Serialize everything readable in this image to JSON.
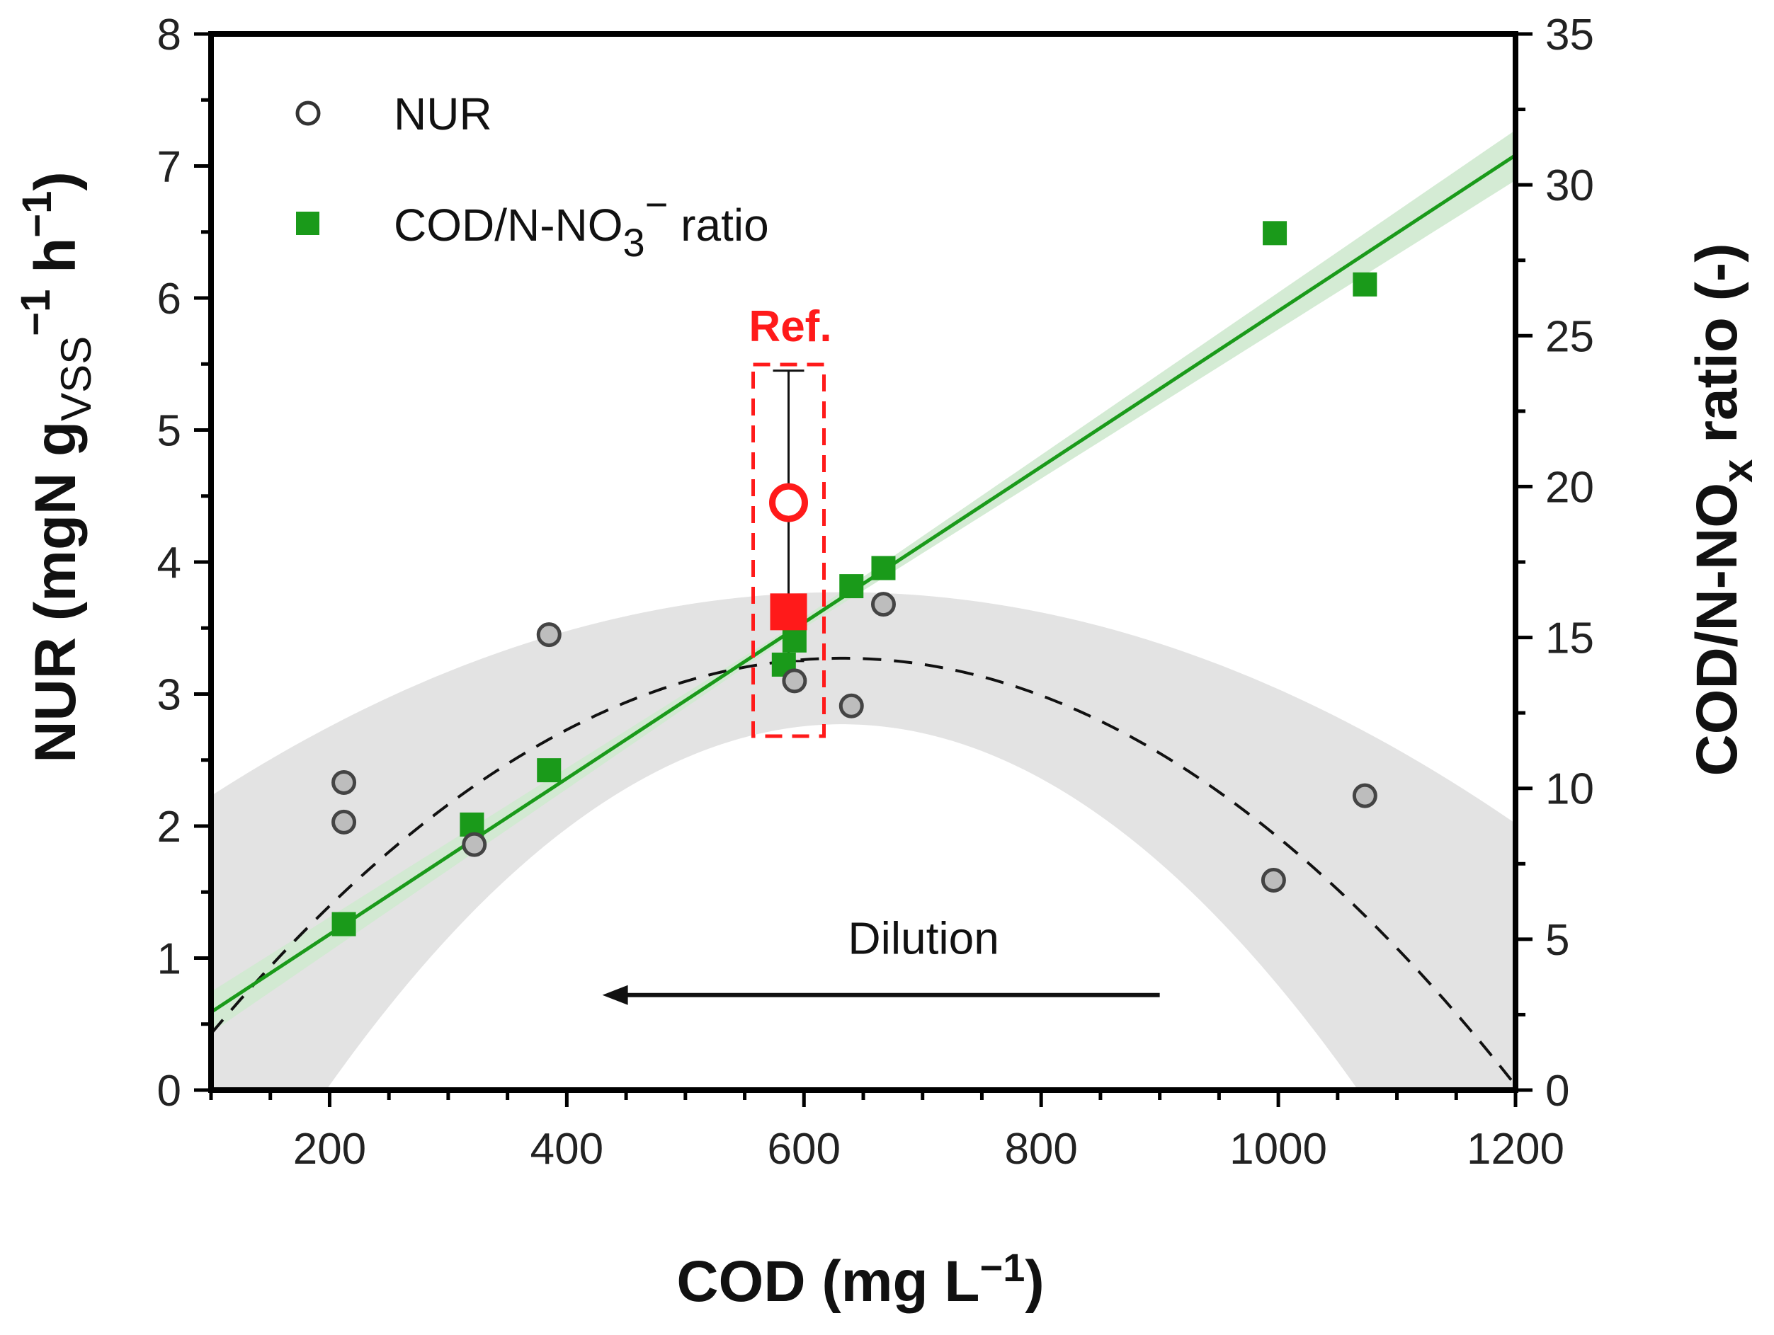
{
  "chart_data": {
    "type": "scatter",
    "x_axis": {
      "label_main": "COD (mg L",
      "label_sup": "−1",
      "label_end": ")",
      "range": [
        100,
        1200
      ],
      "ticks": [
        200,
        400,
        600,
        800,
        1000,
        1200
      ]
    },
    "y_left": {
      "label_main": "NUR (mgN g",
      "label_sub": "VSS",
      "label_sup1": "−1",
      "label_mid": " h",
      "label_sup2": "−1",
      "label_end": ")",
      "range": [
        0,
        8
      ],
      "ticks": [
        0,
        1,
        2,
        3,
        4,
        5,
        6,
        7,
        8
      ]
    },
    "y_right": {
      "label_main": "COD/N-NO",
      "label_sub": "x",
      "label_end": " ratio (-)",
      "range": [
        0,
        35
      ],
      "ticks": [
        0,
        5,
        10,
        15,
        20,
        25,
        30,
        35
      ]
    },
    "series": [
      {
        "name": "NUR",
        "axis": "left",
        "marker": "open-circle",
        "points": [
          {
            "x": 212,
            "y": 2.33
          },
          {
            "x": 212,
            "y": 2.03
          },
          {
            "x": 322,
            "y": 1.86
          },
          {
            "x": 385,
            "y": 3.45
          },
          {
            "x": 592,
            "y": 3.1
          },
          {
            "x": 640,
            "y": 2.91
          },
          {
            "x": 667,
            "y": 3.68
          },
          {
            "x": 996,
            "y": 1.59
          },
          {
            "x": 1073,
            "y": 2.23
          }
        ]
      },
      {
        "name_main": "COD/N-NO",
        "name_sub": "3",
        "name_sup": "−",
        "name_end": " ratio",
        "axis": "right",
        "marker": "filled-square",
        "points": [
          {
            "x": 212,
            "y": 5.5
          },
          {
            "x": 320,
            "y": 8.8
          },
          {
            "x": 385,
            "y": 10.6
          },
          {
            "x": 583,
            "y": 14.1
          },
          {
            "x": 592,
            "y": 14.9
          },
          {
            "x": 640,
            "y": 16.7
          },
          {
            "x": 667,
            "y": 17.3
          },
          {
            "x": 997,
            "y": 28.4
          },
          {
            "x": 1073,
            "y": 26.7
          }
        ]
      }
    ],
    "reference": {
      "label": "Ref.",
      "x": 587,
      "nur": 4.45,
      "nur_error_low": 3.25,
      "nur_error_high": 5.45,
      "ratio": 15.85
    },
    "fits": {
      "nur_quadratic": {
        "a": -1.004e-05,
        "b": 0.012696,
        "c": -0.7424
      },
      "ratio_linear": {
        "slope": 0.02582,
        "intercept": 0.0
      }
    },
    "annotation": {
      "text": "Dilution",
      "arrow_from_x": 900,
      "arrow_to_x": 430,
      "arrow_y": 0.72
    },
    "colors": {
      "nur": "#444444",
      "ratio": "#1a9a1a",
      "reference": "#ff1a1a",
      "nur_band": "#d9d9d9",
      "ratio_band": "#cfe9cf"
    }
  }
}
